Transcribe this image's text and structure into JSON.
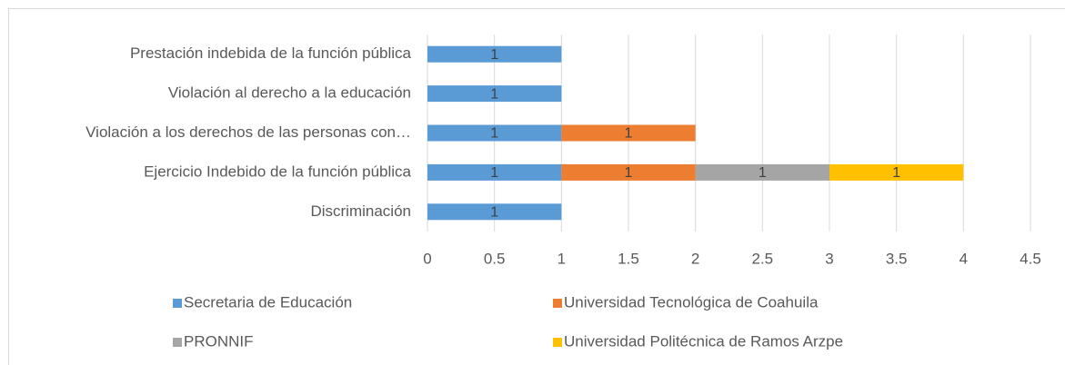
{
  "chart_data": {
    "type": "bar",
    "orientation": "horizontal",
    "stacked": true,
    "categories": [
      "Prestación indebida de la función pública",
      "Violación al derecho a la educación",
      "Violación a los derechos de las personas con…",
      "Ejercicio Indebido de la función pública",
      "Discriminación"
    ],
    "series": [
      {
        "name": "Secretaria de Educación",
        "color": "#5b9bd5",
        "values": [
          1,
          1,
          1,
          1,
          1
        ]
      },
      {
        "name": "Universidad Tecnológica de Coahuila",
        "color": "#ed7d31",
        "values": [
          null,
          null,
          1,
          1,
          null
        ]
      },
      {
        "name": "PRONNIF",
        "color": "#a5a5a5",
        "values": [
          null,
          null,
          null,
          1,
          null
        ]
      },
      {
        "name": "Universidad Politécnica de Ramos Arzpe",
        "color": "#ffc000",
        "values": [
          null,
          null,
          null,
          1,
          null
        ]
      }
    ],
    "xlim": [
      0,
      4.5
    ],
    "xticks": [
      0,
      0.5,
      1,
      1.5,
      2,
      2.5,
      3,
      3.5,
      4,
      4.5
    ],
    "grid": true,
    "legend": "bottom"
  }
}
